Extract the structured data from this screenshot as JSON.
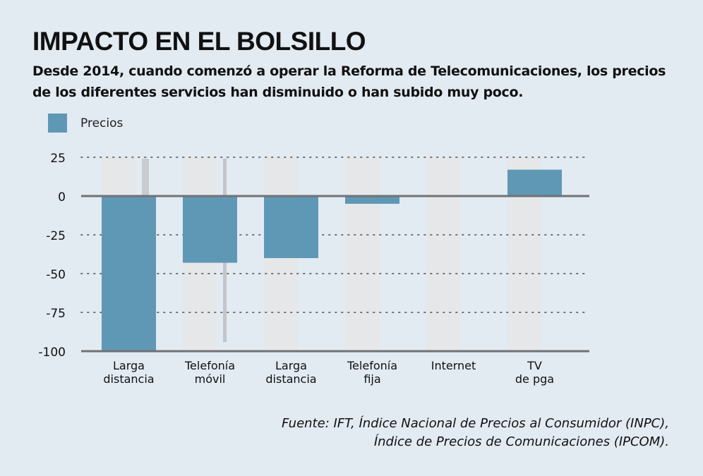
{
  "header": {
    "title": "IMPACTO EN EL BOLSILLO",
    "subtitle": "Desde 2014, cuando comenzó a operar la Reforma de Telecomunicaciones, los precios de los diferentes servicios han disminuido o han subido muy poco."
  },
  "colors": {
    "bar": "#5f98b5",
    "background": "#e2eaf2",
    "ghost_bar": "#e6e7e9",
    "axis": "#707275",
    "grid_dot": "#6f7378"
  },
  "chart_data": {
    "type": "bar",
    "title": "IMPACTO EN EL BOLSILLO",
    "xlabel": "",
    "ylabel": "",
    "ylim": [
      -100,
      25
    ],
    "yticks": [
      25,
      0,
      -25,
      -50,
      -75,
      -100
    ],
    "ytick_labels": [
      "25",
      "0",
      "-25",
      "-50",
      "-75",
      "-100"
    ],
    "grid": "horizontal dotted",
    "legend": {
      "position": "top-left",
      "entries": [
        "Precios"
      ]
    },
    "categories": [
      [
        "Larga",
        "distancia"
      ],
      [
        "Telefonía",
        "móvil"
      ],
      [
        "Larga",
        "distancia"
      ],
      [
        "Telefonía",
        "fija"
      ],
      [
        "Internet"
      ],
      [
        "TV",
        "de pga"
      ]
    ],
    "series": [
      {
        "name": "Precios",
        "values": [
          -100,
          -43,
          -40,
          -5,
          0,
          17
        ]
      }
    ]
  },
  "source": {
    "line1": "Fuente: IFT, Índice Nacional de Precios al Consumidor (INPC),",
    "line2": "Índice de Precios de Comunicaciones (IPCOM)."
  }
}
